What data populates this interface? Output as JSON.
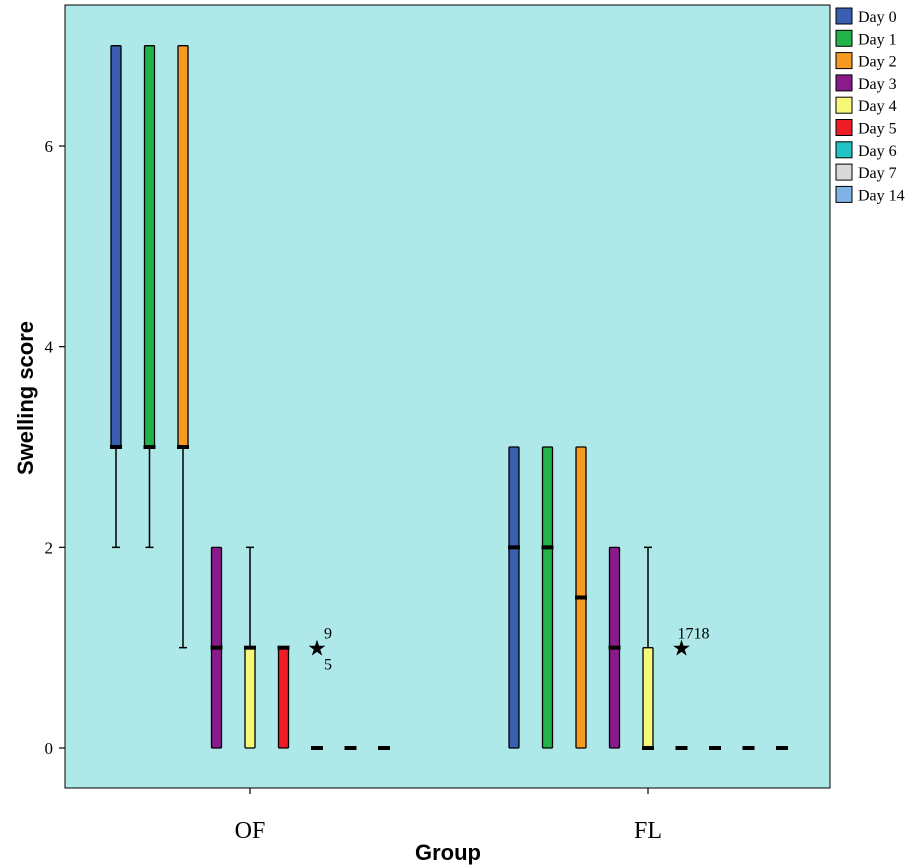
{
  "chart_data": {
    "type": "boxplot",
    "xlabel": "Group",
    "ylabel": "Swelling score",
    "categories": [
      "OF",
      "FL"
    ],
    "ylim": [
      -0.4,
      7.4
    ],
    "yticks": [
      0,
      2,
      4,
      6
    ],
    "grid": false,
    "background_color": "#aee8e8",
    "legend_position": "right",
    "series": [
      {
        "name": "Day 0",
        "color": "#3b5fb0",
        "boxes": [
          {
            "min": 2,
            "q1": 3,
            "median": 3,
            "q3": 7,
            "max": 7
          },
          {
            "min": 0,
            "q1": 0,
            "median": 2,
            "q3": 3,
            "max": 3
          }
        ]
      },
      {
        "name": "Day 1",
        "color": "#22b34a",
        "boxes": [
          {
            "min": 2,
            "q1": 3,
            "median": 3,
            "q3": 7,
            "max": 7
          },
          {
            "min": 0,
            "q1": 0,
            "median": 2,
            "q3": 3,
            "max": 3
          }
        ]
      },
      {
        "name": "Day 2",
        "color": "#f79a22",
        "boxes": [
          {
            "min": 1,
            "q1": 3,
            "median": 3,
            "q3": 7,
            "max": 7
          },
          {
            "min": 0,
            "q1": 0,
            "median": 1.5,
            "q3": 3,
            "max": 3
          }
        ]
      },
      {
        "name": "Day 3",
        "color": "#8b1a8b",
        "boxes": [
          {
            "min": 0,
            "q1": 0,
            "median": 1,
            "q3": 2,
            "max": 2
          },
          {
            "min": 0,
            "q1": 0,
            "median": 1,
            "q3": 2,
            "max": 2
          }
        ]
      },
      {
        "name": "Day 4",
        "color": "#f7f77a",
        "boxes": [
          {
            "min": 0,
            "q1": 0,
            "median": 1,
            "q3": 1,
            "max": 2
          },
          {
            "min": 0,
            "q1": 0,
            "median": 0,
            "q3": 1,
            "max": 2
          }
        ]
      },
      {
        "name": "Day 5",
        "color": "#ee1c24",
        "boxes": [
          {
            "min": 0,
            "q1": 0,
            "median": 1,
            "q3": 1,
            "max": 1
          },
          {
            "min": 0,
            "q1": 0,
            "median": 0,
            "q3": 0,
            "max": 0
          }
        ]
      },
      {
        "name": "Day 6",
        "color": "#20c4c4",
        "boxes": [
          {
            "min": 0,
            "q1": 0,
            "median": 0,
            "q3": 0,
            "max": 0
          },
          {
            "min": 0,
            "q1": 0,
            "median": 0,
            "q3": 0,
            "max": 0
          }
        ]
      },
      {
        "name": "Day 7",
        "color": "#d9d9d9",
        "boxes": [
          {
            "min": 0,
            "q1": 0,
            "median": 0,
            "q3": 0,
            "max": 0
          },
          {
            "min": 0,
            "q1": 0,
            "median": 0,
            "q3": 0,
            "max": 0
          }
        ]
      },
      {
        "name": "Day 14",
        "color": "#7fb2e5",
        "boxes": [
          {
            "min": 0,
            "q1": 0,
            "median": 0,
            "q3": 0,
            "max": 0
          },
          {
            "min": 0,
            "q1": 0,
            "median": 0,
            "q3": 0,
            "max": 0
          }
        ]
      }
    ],
    "outliers": [
      {
        "category": "OF",
        "series": "Day 6",
        "value": 1,
        "labels": [
          "9",
          "5"
        ]
      },
      {
        "category": "FL",
        "series": "Day 5",
        "value": 1,
        "labels": [
          "1718"
        ]
      }
    ]
  }
}
